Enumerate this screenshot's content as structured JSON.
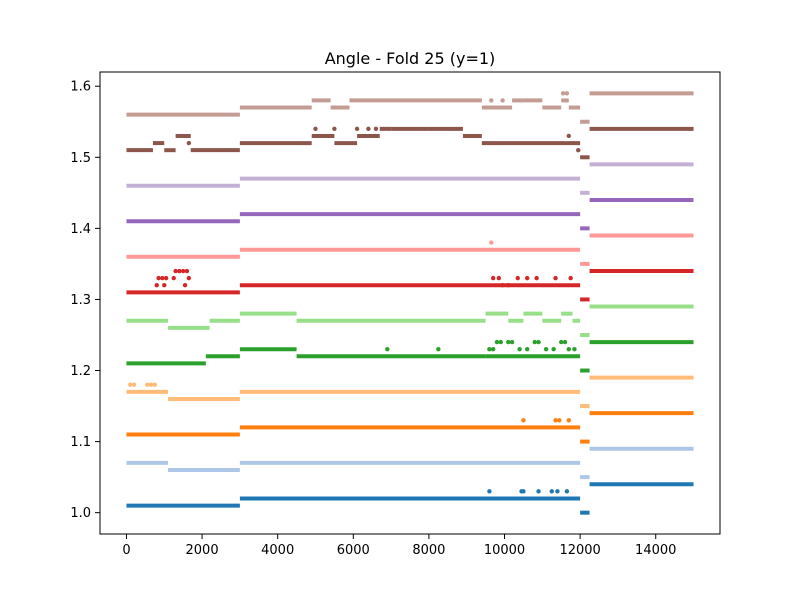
{
  "chart_data": {
    "type": "scatter",
    "title": "Angle - Fold 25 (y=1)",
    "xlabel": "",
    "ylabel": "",
    "xlim": [
      -700,
      15700
    ],
    "ylim": [
      0.97,
      1.62
    ],
    "xticks": [
      0,
      2000,
      4000,
      6000,
      8000,
      10000,
      12000,
      14000
    ],
    "xtick_labels": [
      "0",
      "2000",
      "4000",
      "6000",
      "8000",
      "10000",
      "12000",
      "14000"
    ],
    "yticks": [
      1.0,
      1.1,
      1.2,
      1.3,
      1.4,
      1.5,
      1.6
    ],
    "ytick_labels": [
      "1.0",
      "1.1",
      "1.2",
      "1.3",
      "1.4",
      "1.5",
      "1.6"
    ],
    "grid": false,
    "legend": "none",
    "series": [
      {
        "color": "#1f77b4",
        "segments": [
          [
            0,
            3000,
            1.01
          ],
          [
            3000,
            12000,
            1.02
          ],
          [
            12000,
            12250,
            1.0
          ],
          [
            12250,
            15000,
            1.04
          ]
        ],
        "points": [
          [
            9600,
            1.03
          ],
          [
            10450,
            1.03
          ],
          [
            10500,
            1.03
          ],
          [
            10900,
            1.03
          ],
          [
            11250,
            1.03
          ],
          [
            11400,
            1.03
          ],
          [
            11650,
            1.03
          ]
        ]
      },
      {
        "color": "#aec7e8",
        "segments": [
          [
            0,
            1100,
            1.07
          ],
          [
            1100,
            3000,
            1.06
          ],
          [
            3000,
            12000,
            1.07
          ],
          [
            12000,
            12250,
            1.05
          ],
          [
            12250,
            15000,
            1.09
          ]
        ],
        "points": []
      },
      {
        "color": "#ff7f0e",
        "segments": [
          [
            0,
            3000,
            1.11
          ],
          [
            3000,
            12000,
            1.12
          ],
          [
            12000,
            12250,
            1.1
          ],
          [
            12250,
            15000,
            1.14
          ]
        ],
        "points": [
          [
            10500,
            1.13
          ],
          [
            11350,
            1.13
          ],
          [
            11450,
            1.13
          ],
          [
            11700,
            1.13
          ]
        ]
      },
      {
        "color": "#ffbb78",
        "segments": [
          [
            0,
            1100,
            1.17
          ],
          [
            1100,
            3000,
            1.16
          ],
          [
            3000,
            12000,
            1.17
          ],
          [
            12000,
            12250,
            1.15
          ],
          [
            12250,
            15000,
            1.19
          ]
        ],
        "points": [
          [
            100,
            1.18
          ],
          [
            200,
            1.18
          ],
          [
            550,
            1.18
          ],
          [
            650,
            1.18
          ],
          [
            750,
            1.18
          ]
        ]
      },
      {
        "color": "#2ca02c",
        "segments": [
          [
            0,
            2100,
            1.21
          ],
          [
            2100,
            3000,
            1.22
          ],
          [
            3000,
            4500,
            1.23
          ],
          [
            4500,
            9500,
            1.22
          ],
          [
            9500,
            12000,
            1.22
          ],
          [
            12000,
            12250,
            1.2
          ],
          [
            12250,
            15000,
            1.24
          ]
        ],
        "points": [
          [
            6900,
            1.23
          ],
          [
            8250,
            1.23
          ],
          [
            9600,
            1.23
          ],
          [
            9700,
            1.23
          ],
          [
            9800,
            1.24
          ],
          [
            9900,
            1.24
          ],
          [
            10100,
            1.24
          ],
          [
            10200,
            1.24
          ],
          [
            10400,
            1.23
          ],
          [
            10600,
            1.23
          ],
          [
            10800,
            1.24
          ],
          [
            10900,
            1.24
          ],
          [
            11100,
            1.23
          ],
          [
            11300,
            1.23
          ],
          [
            11500,
            1.24
          ],
          [
            11600,
            1.24
          ],
          [
            11700,
            1.23
          ],
          [
            11850,
            1.23
          ]
        ]
      },
      {
        "color": "#98df8a",
        "segments": [
          [
            0,
            1100,
            1.27
          ],
          [
            1100,
            2200,
            1.26
          ],
          [
            2200,
            3000,
            1.27
          ],
          [
            3000,
            4500,
            1.28
          ],
          [
            4500,
            9500,
            1.27
          ],
          [
            9500,
            10100,
            1.28
          ],
          [
            10100,
            10500,
            1.27
          ],
          [
            10500,
            11000,
            1.28
          ],
          [
            11000,
            11500,
            1.27
          ],
          [
            11500,
            11800,
            1.28
          ],
          [
            11800,
            12000,
            1.27
          ],
          [
            12000,
            12250,
            1.25
          ],
          [
            12250,
            15000,
            1.29
          ]
        ],
        "points": []
      },
      {
        "color": "#d62728",
        "segments": [
          [
            0,
            3000,
            1.31
          ],
          [
            3000,
            12000,
            1.32
          ],
          [
            12000,
            12250,
            1.3
          ],
          [
            12250,
            15000,
            1.34
          ]
        ],
        "points": [
          [
            850,
            1.33
          ],
          [
            950,
            1.33
          ],
          [
            1050,
            1.33
          ],
          [
            1300,
            1.34
          ],
          [
            1400,
            1.34
          ],
          [
            1500,
            1.34
          ],
          [
            1600,
            1.34
          ],
          [
            800,
            1.32
          ],
          [
            1000,
            1.32
          ],
          [
            1250,
            1.33
          ],
          [
            1650,
            1.33
          ],
          [
            1550,
            1.32
          ],
          [
            9700,
            1.33
          ],
          [
            9850,
            1.33
          ],
          [
            10350,
            1.33
          ],
          [
            10600,
            1.33
          ],
          [
            10850,
            1.33
          ],
          [
            11350,
            1.33
          ],
          [
            11750,
            1.33
          ],
          [
            9950,
            1.32
          ],
          [
            10100,
            1.32
          ]
        ]
      },
      {
        "color": "#ff9896",
        "segments": [
          [
            0,
            3000,
            1.36
          ],
          [
            3000,
            12000,
            1.37
          ],
          [
            12000,
            12250,
            1.35
          ],
          [
            12250,
            15000,
            1.39
          ]
        ],
        "points": [
          [
            9650,
            1.38
          ]
        ]
      },
      {
        "color": "#9467bd",
        "segments": [
          [
            0,
            3000,
            1.41
          ],
          [
            3000,
            12000,
            1.42
          ],
          [
            12000,
            12250,
            1.4
          ],
          [
            12250,
            15000,
            1.44
          ]
        ],
        "points": []
      },
      {
        "color": "#c5b0d5",
        "segments": [
          [
            0,
            3000,
            1.46
          ],
          [
            3000,
            12000,
            1.47
          ],
          [
            12000,
            12250,
            1.45
          ],
          [
            12250,
            15000,
            1.49
          ]
        ],
        "points": []
      },
      {
        "color": "#8c564b",
        "segments": [
          [
            0,
            700,
            1.51
          ],
          [
            700,
            1000,
            1.52
          ],
          [
            1000,
            1300,
            1.51
          ],
          [
            1300,
            1700,
            1.53
          ],
          [
            1700,
            3000,
            1.51
          ],
          [
            3000,
            4900,
            1.52
          ],
          [
            4900,
            5500,
            1.53
          ],
          [
            5500,
            6100,
            1.52
          ],
          [
            6100,
            6700,
            1.53
          ],
          [
            6700,
            7000,
            1.54
          ],
          [
            7000,
            8000,
            1.54
          ],
          [
            8000,
            8900,
            1.54
          ],
          [
            8900,
            9400,
            1.53
          ],
          [
            9400,
            12000,
            1.52
          ],
          [
            12000,
            12250,
            1.5
          ],
          [
            12250,
            15000,
            1.54
          ]
        ],
        "points": [
          [
            1650,
            1.52
          ],
          [
            5000,
            1.54
          ],
          [
            5500,
            1.54
          ],
          [
            6100,
            1.54
          ],
          [
            6400,
            1.54
          ],
          [
            6600,
            1.54
          ],
          [
            11700,
            1.53
          ],
          [
            11950,
            1.51
          ]
        ]
      },
      {
        "color": "#c49c94",
        "segments": [
          [
            0,
            3000,
            1.56
          ],
          [
            3000,
            4900,
            1.57
          ],
          [
            4900,
            5400,
            1.58
          ],
          [
            5400,
            5900,
            1.57
          ],
          [
            5900,
            9400,
            1.58
          ],
          [
            9400,
            10200,
            1.57
          ],
          [
            10200,
            10500,
            1.58
          ],
          [
            10500,
            11000,
            1.58
          ],
          [
            11000,
            11500,
            1.57
          ],
          [
            11500,
            11700,
            1.58
          ],
          [
            11700,
            12000,
            1.57
          ],
          [
            12000,
            12250,
            1.55
          ],
          [
            12250,
            15000,
            1.59
          ]
        ],
        "points": [
          [
            9650,
            1.58
          ],
          [
            9950,
            1.58
          ],
          [
            11550,
            1.59
          ],
          [
            11650,
            1.59
          ]
        ]
      }
    ]
  }
}
